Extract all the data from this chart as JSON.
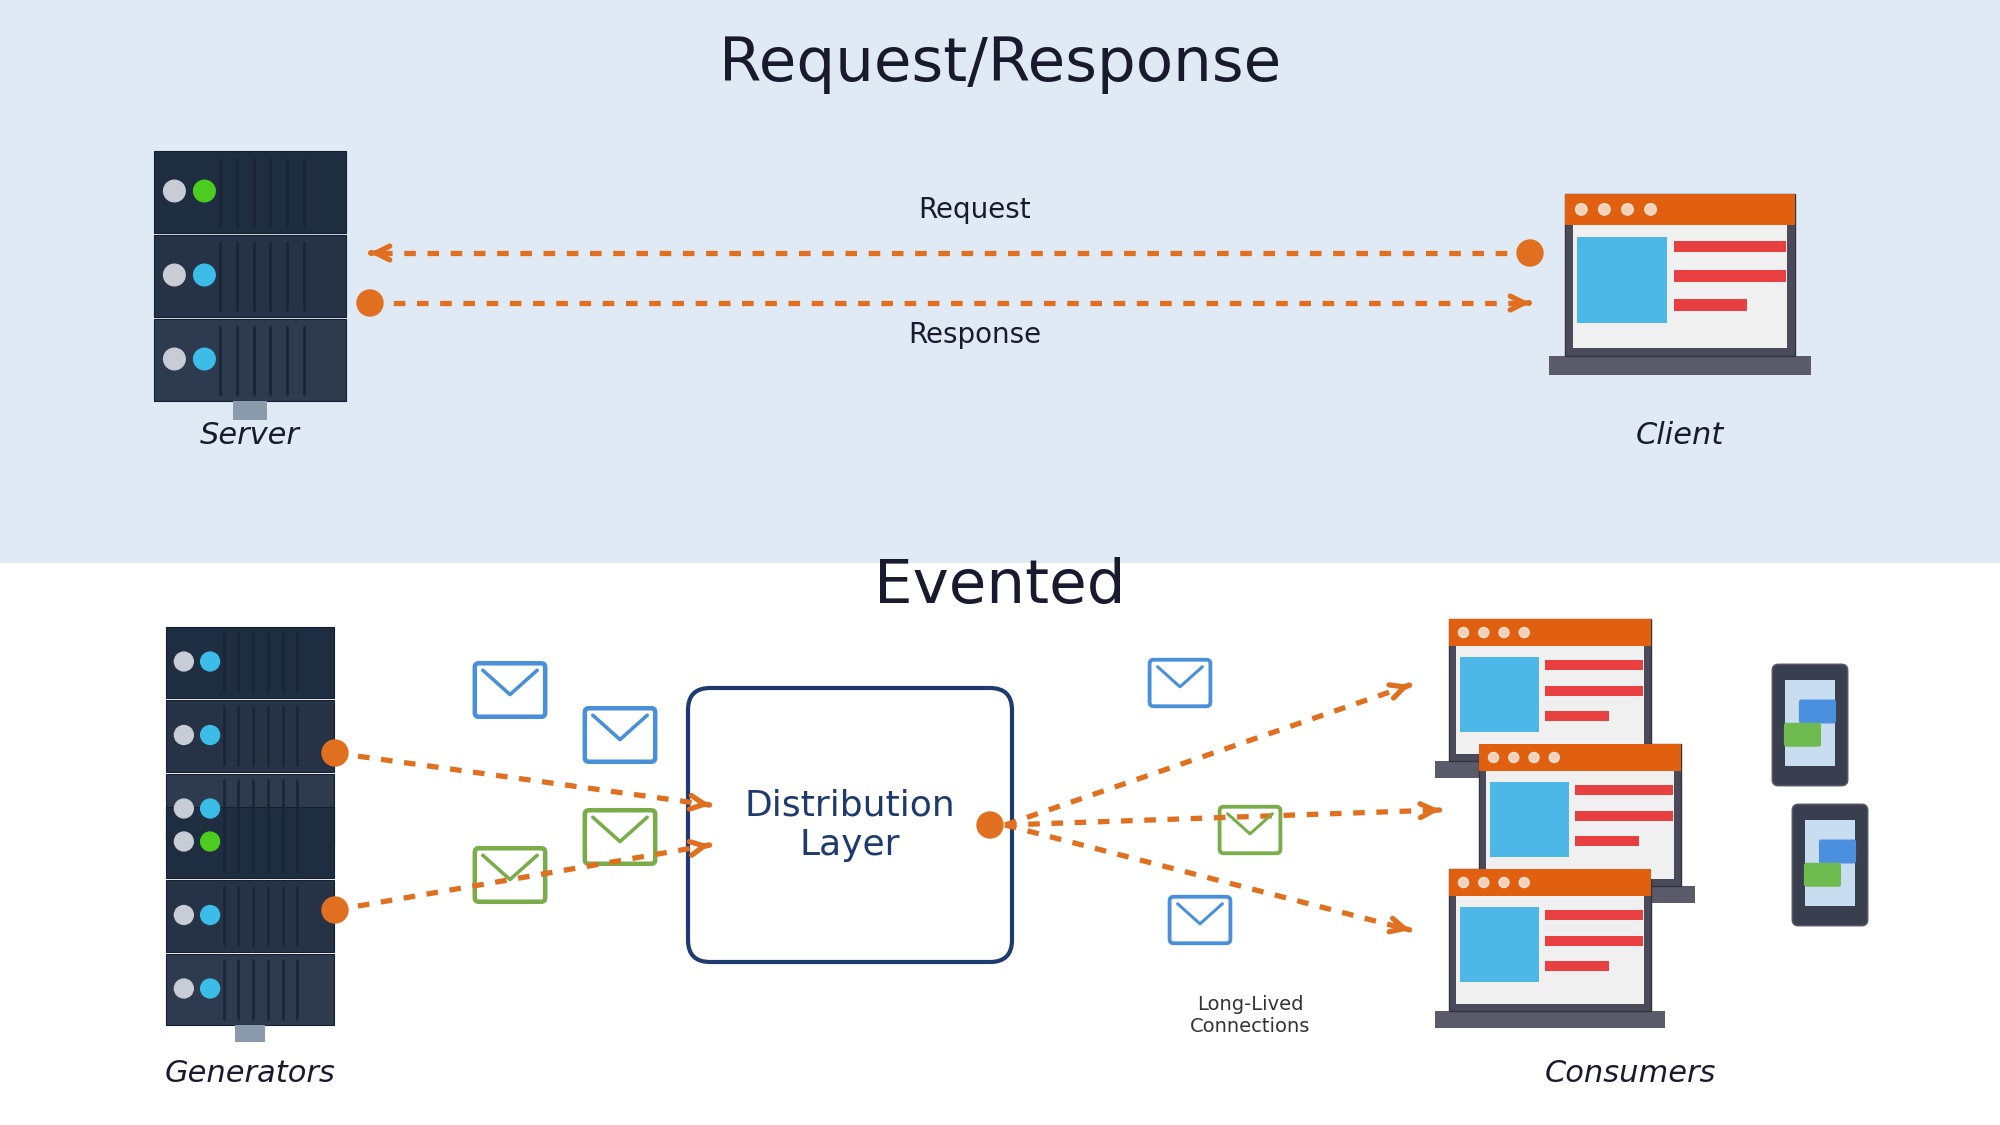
{
  "title_top": "Request/Response",
  "title_bottom": "Evented",
  "section_top_bg": "#e0eaf5",
  "section_bottom_bg": "#ffffff",
  "server_label": "Server",
  "client_label": "Client",
  "generators_label": "Generators",
  "consumers_label": "Consumers",
  "distribution_label": "Distribution\nLayer",
  "connections_label": "Long-Lived\nConnections",
  "arrow_color": "#e07020",
  "dist_box_color": "#1e3a6e",
  "dist_text_color": "#1e3a6e",
  "email_blue": "#4a90d9",
  "email_green": "#7aad4a",
  "request_label": "Request",
  "response_label": "Response",
  "title_fontsize": 44,
  "label_fontsize": 22,
  "arrow_fontsize": 20,
  "dist_fontsize": 26,
  "rack_top_color": "#2e3b4e",
  "rack_mid_color": "#263347",
  "rack_bot_color": "#1e2d40",
  "rack_vent_color": "#1a2535",
  "rack_border_color": "#151f2e",
  "rack_dot_white": "#c8cdd5",
  "rack_dot_green": "#4dcc20",
  "rack_dot_blue": "#3bbde8",
  "laptop_bezel": "#4a4a5a",
  "laptop_bar": "#e06010",
  "laptop_screen": "#ffffff",
  "laptop_blue": "#4db8e8",
  "laptop_red1": "#e84040",
  "laptop_red2": "#d03030",
  "laptop_base": "#5a5a6a",
  "phone_body": "#3a3f50",
  "phone_screen": "#c8ddf0",
  "phone_bubble1": "#4a90df",
  "phone_bubble2": "#70bb50"
}
